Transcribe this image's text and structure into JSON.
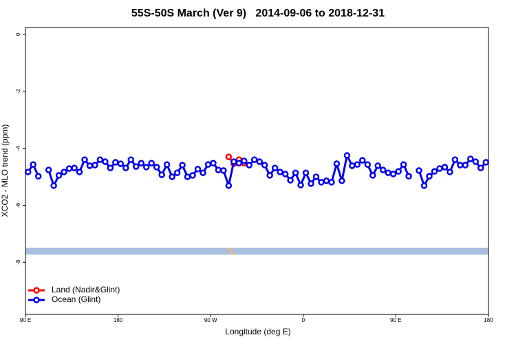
{
  "chart_data": {
    "type": "line",
    "title": "55S-50S March (Ver 9)   2014-09-06 to 2018-12-31",
    "x_label": "Longitude (deg E)",
    "y_label": "XCO2 - MLO trend (ppm)",
    "x": [
      92.5,
      97.5,
      102.5,
      107.5,
      112.5,
      117.5,
      122.5,
      127.5,
      132.5,
      137.5,
      142.5,
      147.5,
      152.5,
      157.5,
      162.5,
      167.5,
      172.5,
      177.5,
      182.5,
      187.5,
      192.5,
      197.5,
      202.5,
      207.5,
      212.5,
      217.5,
      222.5,
      227.5,
      232.5,
      237.5,
      242.5,
      247.5,
      252.5,
      257.5,
      262.5,
      267.5,
      272.5,
      277.5,
      282.5,
      287.5,
      292.5,
      297.5,
      302.5,
      307.5,
      312.5,
      317.5,
      322.5,
      327.5,
      332.5,
      337.5,
      342.5,
      347.5,
      352.5,
      357.5,
      362.5,
      367.5,
      372.5,
      377.5,
      382.5,
      387.5,
      392.5,
      397.5,
      402.5,
      407.5,
      412.5,
      417.5,
      422.5,
      427.5,
      432.5,
      437.5,
      442.5,
      447.5,
      452.5,
      457.5,
      462.5,
      467.5,
      472.5,
      477.5,
      482.5,
      487.5,
      492.5,
      497.5,
      502.5,
      507.5,
      512.5,
      517.5,
      522.5,
      527.5,
      532.5,
      537.5
    ],
    "series": [
      {
        "name": "Land (Nadir&Glint)",
        "color": "#ff0000",
        "x": [
          287.5,
          292.5,
          297.5,
          302.5
        ],
        "values": [
          -4.3,
          -4.54,
          -4.4,
          -4.52
        ]
      },
      {
        "name": "Ocean (Glint)",
        "color": "#0000ee",
        "values": [
          -4.83,
          -4.57,
          -4.98,
          null,
          -4.76,
          -5.31,
          -4.95,
          -4.83,
          -4.71,
          -4.69,
          -4.83,
          -4.4,
          -4.61,
          -4.59,
          -4.4,
          -4.47,
          -4.69,
          -4.49,
          -4.54,
          -4.69,
          -4.4,
          -4.64,
          -4.52,
          -4.66,
          -4.52,
          -4.66,
          -4.93,
          -4.57,
          -5.0,
          -4.86,
          -4.59,
          -5.0,
          -4.95,
          -4.73,
          -4.86,
          -4.57,
          -4.52,
          -4.76,
          -4.78,
          -5.31,
          -4.47,
          -4.52,
          -4.44,
          -4.59,
          -4.4,
          -4.47,
          -4.59,
          -4.95,
          -4.69,
          -4.83,
          -4.9,
          -5.12,
          -4.86,
          -5.29,
          -4.86,
          -5.24,
          -5.0,
          -5.19,
          -5.14,
          -5.19,
          -4.54,
          -5.14,
          -4.25,
          -4.61,
          -4.57,
          -4.42,
          -4.57,
          -4.95,
          -4.61,
          -4.76,
          -4.86,
          -4.9,
          -4.81,
          -4.57,
          -4.98,
          null,
          -4.78,
          -5.31,
          -4.98,
          -4.81,
          -4.71,
          -4.66,
          -4.83,
          -4.4,
          -4.59,
          -4.59,
          -4.37,
          -4.47,
          -4.69,
          -4.49
        ]
      }
    ],
    "xlim": [
      90,
      540
    ],
    "xticks": [
      {
        "value": 90,
        "label": "90 E"
      },
      180,
      {
        "value": 270,
        "label": "90 W"
      },
      {
        "value": 360,
        "label": "0"
      },
      {
        "value": 450,
        "label": "90 E"
      },
      {
        "value": 540,
        "label": "180"
      }
    ],
    "ylim": [
      -9.83,
      0.24
    ],
    "yticks": [
      0,
      -2,
      -4,
      -6,
      -8
    ],
    "legend": "bottom-left"
  }
}
